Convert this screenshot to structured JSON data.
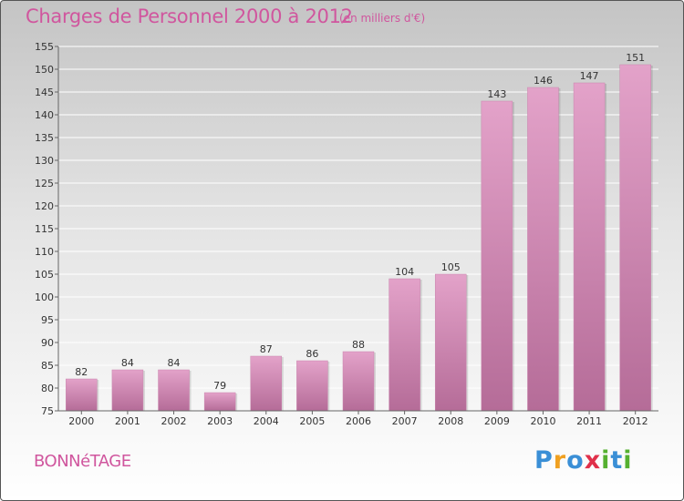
{
  "header": {
    "title": "Charges de Personnel 2000 à 2012",
    "subtitle": "(en milliers d'€)"
  },
  "footer": {
    "commune": "BONNéTAGE",
    "logo_letters": [
      {
        "ch": "P",
        "color": "#3a8fd6"
      },
      {
        "ch": "r",
        "color": "#f0a020"
      },
      {
        "ch": "o",
        "color": "#3a8fd6"
      },
      {
        "ch": "x",
        "color": "#e0304a"
      },
      {
        "ch": "i",
        "color": "#55b030"
      },
      {
        "ch": "t",
        "color": "#3a8fd6"
      },
      {
        "ch": "i",
        "color": "#55b030"
      }
    ]
  },
  "chart_data": {
    "type": "bar",
    "title": "Charges de Personnel 2000 à 2012",
    "subtitle": "(en milliers d'€)",
    "categories": [
      "2000",
      "2001",
      "2002",
      "2003",
      "2004",
      "2005",
      "2006",
      "2007",
      "2008",
      "2009",
      "2010",
      "2011",
      "2012"
    ],
    "values": [
      82,
      84,
      84,
      79,
      87,
      86,
      88,
      104,
      105,
      143,
      146,
      147,
      151
    ],
    "ylim": [
      75,
      155
    ],
    "yticks": [
      75,
      80,
      85,
      90,
      95,
      100,
      105,
      110,
      115,
      120,
      125,
      130,
      135,
      140,
      145,
      150,
      155
    ],
    "grid": true,
    "bar_color": "#e3a2c9",
    "bar_color_dark": "#b56c98"
  }
}
